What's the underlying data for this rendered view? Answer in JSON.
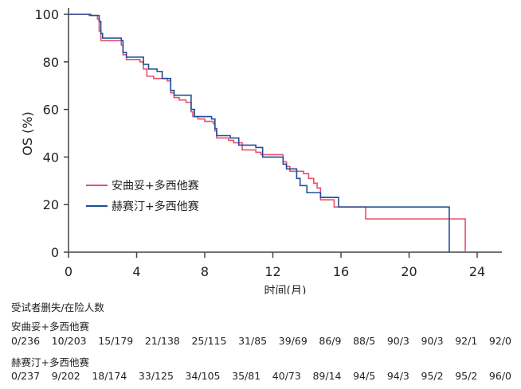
{
  "chart_data": {
    "type": "line",
    "subtype": "kaplan-meier step",
    "ylabel": "OS (%)",
    "xlabel": "时间(月)",
    "xlim": [
      0,
      25.3
    ],
    "ylim": [
      0,
      100
    ],
    "xticks": [
      0,
      4,
      8,
      12,
      16,
      20,
      24
    ],
    "yticks": [
      0,
      20,
      40,
      60,
      80,
      100
    ],
    "grid": false,
    "legend_position": "left-center",
    "series": [
      {
        "name": "安曲妥+多西他赛",
        "color": "#e8506a",
        "points": [
          [
            0,
            100
          ],
          [
            1.2,
            99.5
          ],
          [
            1.7,
            98
          ],
          [
            1.8,
            93
          ],
          [
            1.9,
            89
          ],
          [
            2.7,
            89
          ],
          [
            3.1,
            87
          ],
          [
            3.2,
            83
          ],
          [
            3.4,
            81
          ],
          [
            4.2,
            80
          ],
          [
            4.4,
            77
          ],
          [
            4.6,
            74
          ],
          [
            5.0,
            73
          ],
          [
            5.8,
            72
          ],
          [
            6.0,
            67
          ],
          [
            6.2,
            65
          ],
          [
            6.5,
            64
          ],
          [
            6.9,
            63
          ],
          [
            7.2,
            59
          ],
          [
            7.3,
            57
          ],
          [
            7.6,
            56
          ],
          [
            8.0,
            55
          ],
          [
            8.5,
            54
          ],
          [
            8.6,
            51
          ],
          [
            8.7,
            48
          ],
          [
            9.4,
            47
          ],
          [
            9.7,
            46
          ],
          [
            10.2,
            43
          ],
          [
            11.0,
            42
          ],
          [
            11.3,
            41
          ],
          [
            12.6,
            38
          ],
          [
            12.8,
            36
          ],
          [
            13.0,
            34
          ],
          [
            13.8,
            33
          ],
          [
            14.1,
            31
          ],
          [
            14.4,
            29
          ],
          [
            14.6,
            27
          ],
          [
            14.8,
            22
          ],
          [
            15.6,
            21
          ],
          [
            15.6,
            19
          ],
          [
            17.45,
            14
          ],
          [
            23.3,
            0
          ]
        ]
      },
      {
        "name": "赫赛汀+多西他赛",
        "color": "#1f4e99",
        "points": [
          [
            0,
            100
          ],
          [
            1.3,
            99.5
          ],
          [
            1.8,
            97
          ],
          [
            1.9,
            92
          ],
          [
            2.0,
            90
          ],
          [
            3.1,
            89
          ],
          [
            3.2,
            84
          ],
          [
            3.4,
            82
          ],
          [
            4.4,
            79
          ],
          [
            4.7,
            77
          ],
          [
            5.2,
            76
          ],
          [
            5.5,
            73
          ],
          [
            6.0,
            68
          ],
          [
            6.2,
            66
          ],
          [
            7.2,
            60
          ],
          [
            7.4,
            57
          ],
          [
            8.4,
            56
          ],
          [
            8.6,
            52
          ],
          [
            8.7,
            49
          ],
          [
            9.5,
            48
          ],
          [
            10.0,
            45
          ],
          [
            11.0,
            44
          ],
          [
            11.4,
            40
          ],
          [
            12.6,
            37
          ],
          [
            12.8,
            35
          ],
          [
            13.4,
            31
          ],
          [
            13.6,
            28
          ],
          [
            14.0,
            25
          ],
          [
            14.8,
            23
          ],
          [
            15.86,
            19
          ],
          [
            22.36,
            0
          ]
        ]
      }
    ],
    "risk_table": {
      "title": "受试者删失/在险人数",
      "groups": [
        {
          "name": "安曲妥+多西他赛",
          "values": [
            "0/236",
            "10/203",
            "15/179",
            "21/138",
            "25/115",
            "31/85",
            "39/69",
            "86/9",
            "88/5",
            "90/3",
            "90/3",
            "92/1",
            "92/0"
          ]
        },
        {
          "name": "赫赛汀+多西他赛",
          "values": [
            "0/237",
            "9/202",
            "18/174",
            "33/125",
            "34/105",
            "35/81",
            "40/73",
            "89/14",
            "94/5",
            "94/3",
            "95/2",
            "95/2",
            "96/0"
          ]
        }
      ]
    }
  }
}
